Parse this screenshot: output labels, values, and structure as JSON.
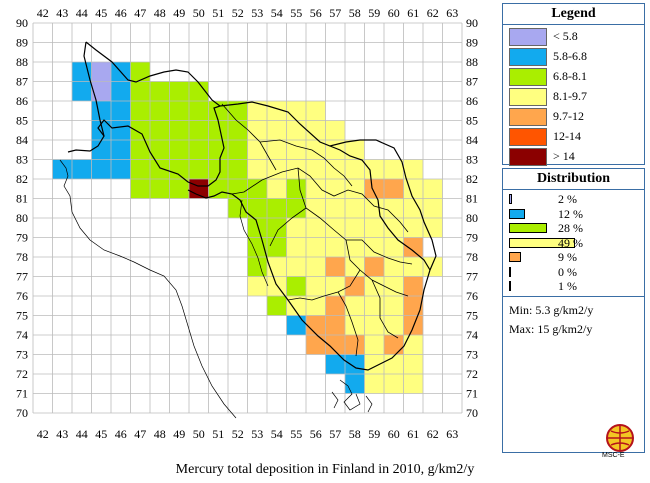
{
  "map": {
    "caption": "Mercury total deposition in Finland in 2010, g/km2/y",
    "x_labels": [
      "42",
      "43",
      "44",
      "45",
      "46",
      "47",
      "48",
      "49",
      "50",
      "51",
      "52",
      "53",
      "54",
      "55",
      "56",
      "57",
      "58",
      "59",
      "60",
      "61",
      "62",
      "63"
    ],
    "y_labels": [
      "90",
      "89",
      "88",
      "87",
      "86",
      "85",
      "84",
      "83",
      "82",
      "81",
      "80",
      "79",
      "78",
      "77",
      "76",
      "75",
      "74",
      "73",
      "72",
      "71",
      "70"
    ]
  },
  "legend": {
    "title": "Legend",
    "items": [
      {
        "label": "< 5.8",
        "color": "#a8a8f0"
      },
      {
        "label": "5.8-6.8",
        "color": "#12aaee"
      },
      {
        "label": "6.8-8.1",
        "color": "#aaee00"
      },
      {
        "label": "8.1-9.7",
        "color": "#ffff80"
      },
      {
        "label": "9.7-12",
        "color": "#ffa64d"
      },
      {
        "label": "12-14",
        "color": "#ff5500"
      },
      {
        "label": "> 14",
        "color": "#8b0000"
      }
    ]
  },
  "distribution": {
    "title": "Distribution",
    "items": [
      {
        "label": "2 %",
        "value": 2,
        "color": "#a8a8f0"
      },
      {
        "label": "12 %",
        "value": 12,
        "color": "#12aaee"
      },
      {
        "label": "28 %",
        "value": 28,
        "color": "#aaee00"
      },
      {
        "label": "49 %",
        "value": 49,
        "color": "#ffff80"
      },
      {
        "label": "9 %",
        "value": 9,
        "color": "#ffa64d"
      },
      {
        "label": "0 %",
        "value": 0,
        "color": "#ff5500"
      },
      {
        "label": "1 %",
        "value": 1,
        "color": "#8b0000"
      }
    ],
    "min": "Min: 5.3 g/km2/y",
    "max": "Max: 15 g/km2/y"
  },
  "logo": {
    "text": "MSC-E"
  }
}
